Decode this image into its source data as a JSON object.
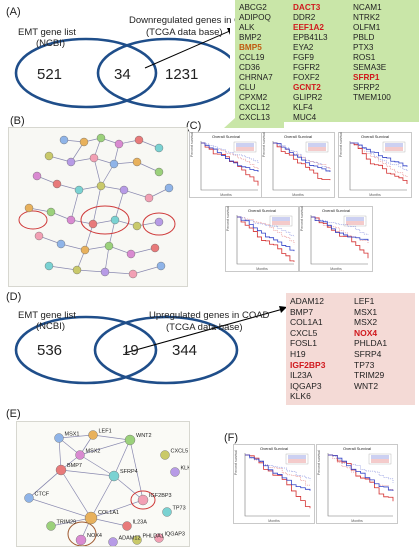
{
  "panels": {
    "a": "(A)",
    "b": "(B)",
    "c": "(C)",
    "d": "(D)",
    "e": "(E)",
    "f": "(F)"
  },
  "venn_a": {
    "left_title_1": "EMT gene list",
    "left_title_2": "(NCBI)",
    "right_title_1": "Downregulated genes  in COAD",
    "right_title_2": "(TCGA data base)",
    "left_only": "521",
    "overlap": "34",
    "right_only": "1231"
  },
  "genes_a": {
    "col1": [
      {
        "name": "ABCG2",
        "style": ""
      },
      {
        "name": "ADIPOQ",
        "style": ""
      },
      {
        "name": "ALK",
        "style": ""
      },
      {
        "name": "BMP2",
        "style": ""
      },
      {
        "name": "BMP5",
        "style": "orange"
      },
      {
        "name": "CCL19",
        "style": ""
      },
      {
        "name": "CD36",
        "style": ""
      },
      {
        "name": "CHRNA7",
        "style": ""
      },
      {
        "name": "CLU",
        "style": ""
      },
      {
        "name": "CPXM2",
        "style": ""
      },
      {
        "name": "CXCL12",
        "style": ""
      },
      {
        "name": "CXCL13",
        "style": ""
      }
    ],
    "col2": [
      {
        "name": "DACT3",
        "style": "red"
      },
      {
        "name": "DDR2",
        "style": ""
      },
      {
        "name": "EEF1A2",
        "style": "red"
      },
      {
        "name": "EPB41L3",
        "style": ""
      },
      {
        "name": "EYA2",
        "style": ""
      },
      {
        "name": "FGF9",
        "style": ""
      },
      {
        "name": "FGFR2",
        "style": ""
      },
      {
        "name": "FOXF2",
        "style": ""
      },
      {
        "name": "GCNT2",
        "style": "red"
      },
      {
        "name": "GLIPR2",
        "style": ""
      },
      {
        "name": "KLF4",
        "style": ""
      },
      {
        "name": "MUC4",
        "style": ""
      }
    ],
    "col3": [
      {
        "name": "NCAM1",
        "style": ""
      },
      {
        "name": "NTRK2",
        "style": ""
      },
      {
        "name": "OLFM1",
        "style": ""
      },
      {
        "name": "PBLD",
        "style": ""
      },
      {
        "name": "PTX3",
        "style": ""
      },
      {
        "name": "ROS1",
        "style": ""
      },
      {
        "name": "SEMA3E",
        "style": ""
      },
      {
        "name": "SFRP1",
        "style": "red"
      },
      {
        "name": "SFRP2",
        "style": ""
      },
      {
        "name": "TMEM100",
        "style": ""
      }
    ]
  },
  "venn_d": {
    "left_title_1": "EMT gene list",
    "left_title_2": "(NCBI)",
    "right_title_1": "Upregulated genes  in COAD",
    "right_title_2": "(TCGA data base)",
    "left_only": "536",
    "overlap": "19",
    "right_only": "344"
  },
  "genes_d": {
    "col1": [
      {
        "name": "ADAM12",
        "style": ""
      },
      {
        "name": "BMP7",
        "style": ""
      },
      {
        "name": "COL1A1",
        "style": ""
      },
      {
        "name": "CXCL5",
        "style": ""
      },
      {
        "name": "FOSL1",
        "style": ""
      },
      {
        "name": "H19",
        "style": ""
      },
      {
        "name": "IGF2BP3",
        "style": "red"
      },
      {
        "name": "IL23A",
        "style": ""
      },
      {
        "name": "IQGAP3",
        "style": ""
      },
      {
        "name": "KLK6",
        "style": ""
      }
    ],
    "col2": [
      {
        "name": "LEF1",
        "style": ""
      },
      {
        "name": "MSX1",
        "style": ""
      },
      {
        "name": "MSX2",
        "style": ""
      },
      {
        "name": "NOX4",
        "style": "red"
      },
      {
        "name": "PHLDA1",
        "style": ""
      },
      {
        "name": "SFRP4",
        "style": ""
      },
      {
        "name": "TP73",
        "style": ""
      },
      {
        "name": "TRIM29",
        "style": ""
      },
      {
        "name": "WNT2",
        "style": ""
      }
    ]
  },
  "km": {
    "title": "Overall Survival",
    "xlabel": "Months",
    "ylabel": "Percent survival"
  },
  "network_e": {
    "nodes": [
      "MSX1",
      "LEF1",
      "WNT2",
      "MSX2",
      "BMP7",
      "SFRP4",
      "CXCL5",
      "KLK6",
      "IGF2BP3",
      "CTCF",
      "COL1A1",
      "TRIM29",
      "NOX4",
      "IL23A",
      "TP73",
      "PHLDA1",
      "ADAM12",
      "IQGAP3"
    ]
  },
  "colors": {
    "venn_stroke": "#1f4e8a",
    "green_box": "#c9e6a8",
    "pink_box": "#f4dad6",
    "gene_highlight": "#d0191e",
    "km_low": "#3243c8",
    "km_high": "#d42f2f",
    "circle_red": "#cf3a3a",
    "circle_brown": "#a05a32"
  }
}
